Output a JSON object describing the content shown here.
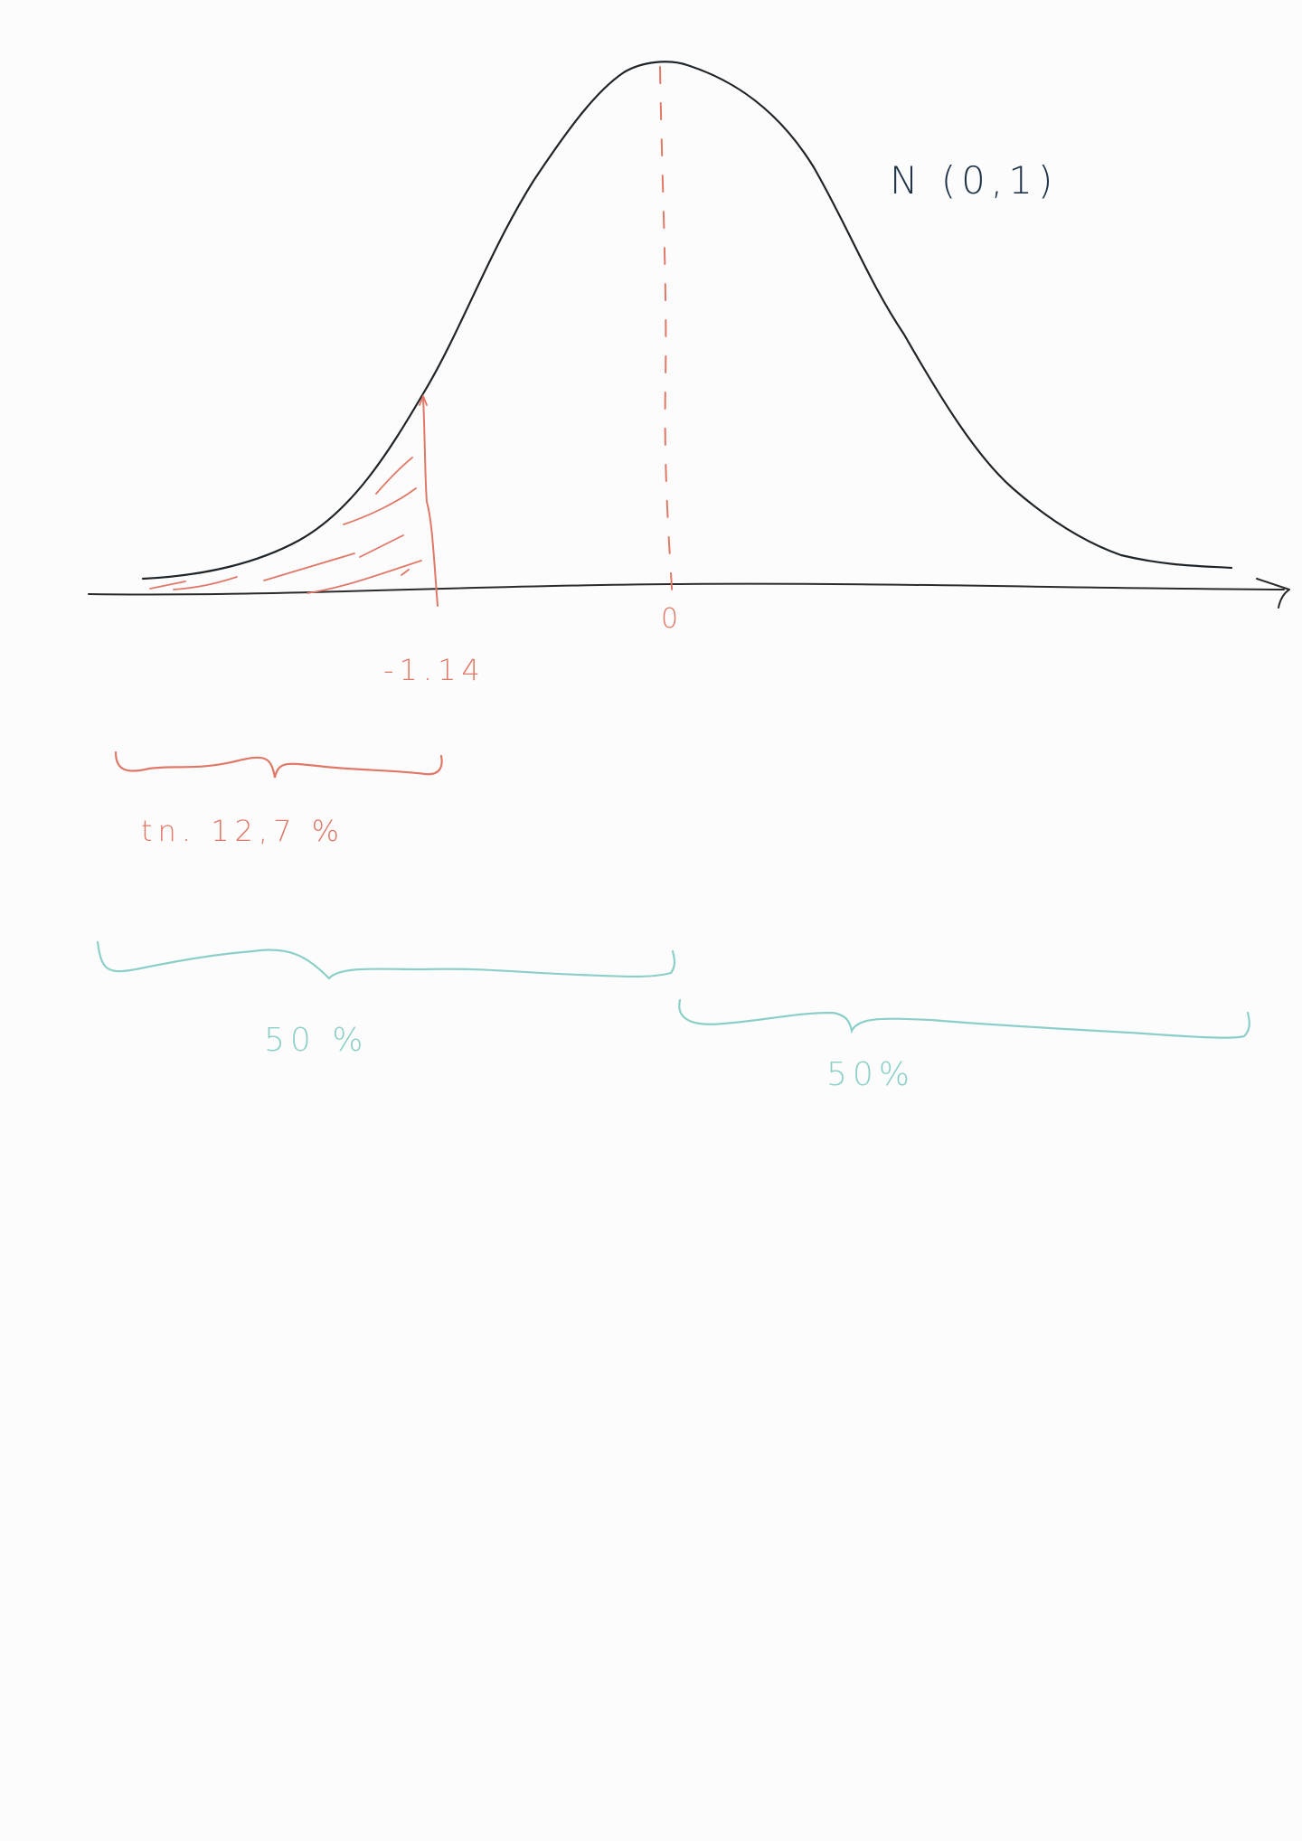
{
  "distribution_label": "N (0,1)",
  "mean_label": "0",
  "cutoff_label": "-1.14",
  "shaded_area_label": "tn. 12,7 %",
  "left_half_label": "50 %",
  "right_half_label": "50%",
  "colors": {
    "ink": "#1f2428",
    "navy": "#1f3448",
    "salmon": "#e07868",
    "teal": "#8ccfc8",
    "paper": "#fcfcfc"
  }
}
